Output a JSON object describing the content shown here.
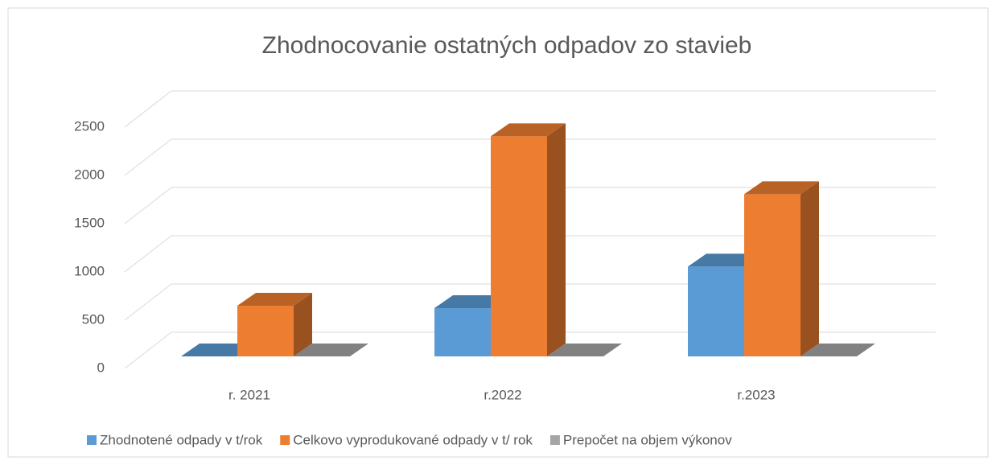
{
  "chart_data": {
    "type": "bar3d",
    "title": "Zhodnocovanie ostatných odpadov zo stavieb",
    "categories": [
      "r. 2021",
      "r.2022",
      "r.2023"
    ],
    "series": [
      {
        "name": "Zhodnotené odpady v t/rok",
        "color": "#5b9bd5",
        "values": [
          0,
          500,
          930
        ]
      },
      {
        "name": "Celkovo vyprodukované odpady v t/ rok",
        "color": "#ed7d31",
        "values": [
          525,
          2280,
          1680
        ]
      },
      {
        "name": "Prepočet na objem výkonov",
        "color": "#a5a5a5",
        "values": [
          0,
          0,
          0
        ]
      }
    ],
    "ylim": [
      0,
      2500
    ],
    "yticks": [
      0,
      500,
      1000,
      1500,
      2000,
      2500
    ],
    "grid": true,
    "legend": "bottom"
  }
}
